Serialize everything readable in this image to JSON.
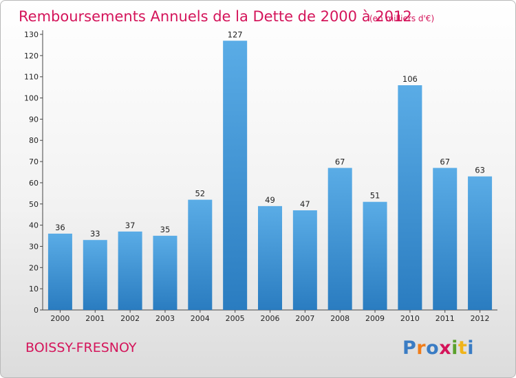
{
  "chart_data": {
    "type": "bar",
    "title": "Remboursements Annuels de la Dette de 2000 à 2012",
    "subtitle": "(en milliers d'€)",
    "categories": [
      "2000",
      "2001",
      "2002",
      "2003",
      "2004",
      "2005",
      "2006",
      "2007",
      "2008",
      "2009",
      "2010",
      "2011",
      "2012"
    ],
    "values": [
      36,
      33,
      37,
      35,
      52,
      127,
      49,
      47,
      67,
      51,
      106,
      67,
      63
    ],
    "ylim": [
      0,
      130
    ],
    "yticks": [
      0,
      10,
      20,
      30,
      40,
      50,
      60,
      70,
      80,
      90,
      100,
      110,
      120,
      130
    ],
    "grid": false,
    "bar_color_top": "#5aace6",
    "bar_color_bottom": "#2a7cc0"
  },
  "footer": {
    "city": "BOISSY-FRESNOY",
    "logo_text": "Proxiti",
    "logo_colors": [
      "#3a7cc4",
      "#f07d1a",
      "#3a7cc4",
      "#d4145a",
      "#5aa02c",
      "#f0b41a",
      "#3a7cc4"
    ]
  }
}
